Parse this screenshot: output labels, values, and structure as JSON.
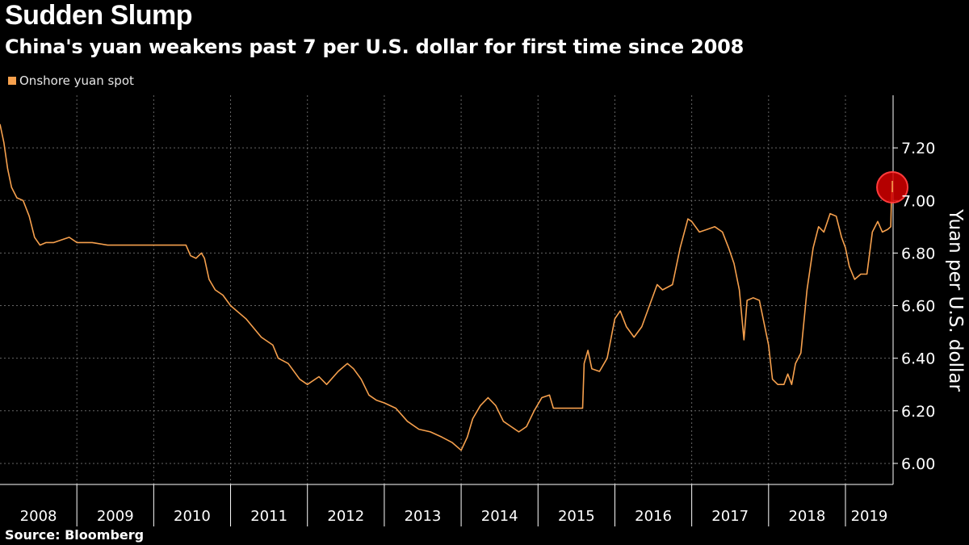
{
  "header": {
    "title": "Sudden Slump",
    "subtitle": "China's yuan weakens past 7 per U.S. dollar for first time since 2008"
  },
  "footer": {
    "source": "Source: Bloomberg"
  },
  "colors": {
    "background": "#000000",
    "line": "#f6a04d",
    "grid": "#666666",
    "highlight": "#d40000"
  },
  "chart_data": {
    "type": "line",
    "title": "Sudden Slump",
    "subtitle": "China's yuan weakens past 7 per U.S. dollar for first time since 2008",
    "ylabel": "Yuan per U.S. dollar",
    "xlabel": "",
    "x_tick_labels": [
      "2008",
      "2009",
      "2010",
      "2011",
      "2012",
      "2013",
      "2014",
      "2015",
      "2016",
      "2017",
      "2018",
      "2019"
    ],
    "y_tick_labels": [
      "6.00",
      "6.20",
      "6.40",
      "6.60",
      "6.80",
      "7.00",
      "7.20"
    ],
    "xlim": [
      2008.0,
      2019.62
    ],
    "ylim": [
      5.92,
      7.4
    ],
    "y_axis_side": "right",
    "grid": true,
    "legend_position": "top-left",
    "series": [
      {
        "name": "Onshore yuan spot",
        "color": "#f6a04d",
        "points": [
          [
            2008.0,
            7.29
          ],
          [
            2008.05,
            7.22
          ],
          [
            2008.1,
            7.12
          ],
          [
            2008.15,
            7.05
          ],
          [
            2008.22,
            7.01
          ],
          [
            2008.3,
            7.0
          ],
          [
            2008.38,
            6.94
          ],
          [
            2008.45,
            6.86
          ],
          [
            2008.52,
            6.83
          ],
          [
            2008.6,
            6.84
          ],
          [
            2008.7,
            6.84
          ],
          [
            2008.8,
            6.85
          ],
          [
            2008.9,
            6.86
          ],
          [
            2009.0,
            6.84
          ],
          [
            2009.2,
            6.84
          ],
          [
            2009.4,
            6.83
          ],
          [
            2009.6,
            6.83
          ],
          [
            2009.8,
            6.83
          ],
          [
            2010.0,
            6.83
          ],
          [
            2010.2,
            6.83
          ],
          [
            2010.42,
            6.83
          ],
          [
            2010.48,
            6.79
          ],
          [
            2010.55,
            6.78
          ],
          [
            2010.62,
            6.8
          ],
          [
            2010.66,
            6.78
          ],
          [
            2010.72,
            6.7
          ],
          [
            2010.8,
            6.66
          ],
          [
            2010.9,
            6.64
          ],
          [
            2011.0,
            6.6
          ],
          [
            2011.2,
            6.55
          ],
          [
            2011.4,
            6.48
          ],
          [
            2011.55,
            6.45
          ],
          [
            2011.62,
            6.4
          ],
          [
            2011.75,
            6.38
          ],
          [
            2011.9,
            6.32
          ],
          [
            2012.0,
            6.3
          ],
          [
            2012.15,
            6.33
          ],
          [
            2012.25,
            6.3
          ],
          [
            2012.4,
            6.35
          ],
          [
            2012.52,
            6.38
          ],
          [
            2012.6,
            6.36
          ],
          [
            2012.7,
            6.32
          ],
          [
            2012.8,
            6.26
          ],
          [
            2012.9,
            6.24
          ],
          [
            2013.0,
            6.23
          ],
          [
            2013.15,
            6.21
          ],
          [
            2013.3,
            6.16
          ],
          [
            2013.45,
            6.13
          ],
          [
            2013.6,
            6.12
          ],
          [
            2013.75,
            6.1
          ],
          [
            2013.88,
            6.08
          ],
          [
            2014.0,
            6.05
          ],
          [
            2014.08,
            6.1
          ],
          [
            2014.15,
            6.17
          ],
          [
            2014.25,
            6.22
          ],
          [
            2014.35,
            6.25
          ],
          [
            2014.45,
            6.22
          ],
          [
            2014.55,
            6.16
          ],
          [
            2014.65,
            6.14
          ],
          [
            2014.75,
            6.12
          ],
          [
            2014.85,
            6.14
          ],
          [
            2014.95,
            6.2
          ],
          [
            2015.05,
            6.25
          ],
          [
            2015.15,
            6.26
          ],
          [
            2015.2,
            6.21
          ],
          [
            2015.4,
            6.21
          ],
          [
            2015.58,
            6.21
          ],
          [
            2015.6,
            6.38
          ],
          [
            2015.65,
            6.43
          ],
          [
            2015.7,
            6.36
          ],
          [
            2015.8,
            6.35
          ],
          [
            2015.9,
            6.4
          ],
          [
            2016.0,
            6.55
          ],
          [
            2016.07,
            6.58
          ],
          [
            2016.15,
            6.52
          ],
          [
            2016.25,
            6.48
          ],
          [
            2016.35,
            6.52
          ],
          [
            2016.45,
            6.6
          ],
          [
            2016.55,
            6.68
          ],
          [
            2016.62,
            6.66
          ],
          [
            2016.75,
            6.68
          ],
          [
            2016.85,
            6.82
          ],
          [
            2016.95,
            6.93
          ],
          [
            2017.0,
            6.92
          ],
          [
            2017.1,
            6.88
          ],
          [
            2017.2,
            6.89
          ],
          [
            2017.3,
            6.9
          ],
          [
            2017.4,
            6.88
          ],
          [
            2017.48,
            6.82
          ],
          [
            2017.55,
            6.76
          ],
          [
            2017.62,
            6.66
          ],
          [
            2017.68,
            6.47
          ],
          [
            2017.72,
            6.62
          ],
          [
            2017.8,
            6.63
          ],
          [
            2017.88,
            6.62
          ],
          [
            2017.93,
            6.55
          ],
          [
            2018.0,
            6.45
          ],
          [
            2018.05,
            6.32
          ],
          [
            2018.12,
            6.3
          ],
          [
            2018.2,
            6.3
          ],
          [
            2018.25,
            6.34
          ],
          [
            2018.3,
            6.3
          ],
          [
            2018.35,
            6.38
          ],
          [
            2018.42,
            6.42
          ],
          [
            2018.5,
            6.66
          ],
          [
            2018.58,
            6.82
          ],
          [
            2018.65,
            6.9
          ],
          [
            2018.72,
            6.88
          ],
          [
            2018.8,
            6.95
          ],
          [
            2018.88,
            6.94
          ],
          [
            2018.95,
            6.86
          ],
          [
            2019.0,
            6.82
          ],
          [
            2019.05,
            6.75
          ],
          [
            2019.12,
            6.7
          ],
          [
            2019.2,
            6.72
          ],
          [
            2019.28,
            6.72
          ],
          [
            2019.35,
            6.88
          ],
          [
            2019.42,
            6.92
          ],
          [
            2019.48,
            6.88
          ],
          [
            2019.55,
            6.89
          ],
          [
            2019.59,
            6.9
          ],
          [
            2019.6,
            7.02
          ],
          [
            2019.61,
            7.05
          ]
        ]
      }
    ],
    "annotations": [
      {
        "type": "circle-marker",
        "x": 2019.61,
        "y": 7.05,
        "color": "#d40000"
      }
    ]
  }
}
